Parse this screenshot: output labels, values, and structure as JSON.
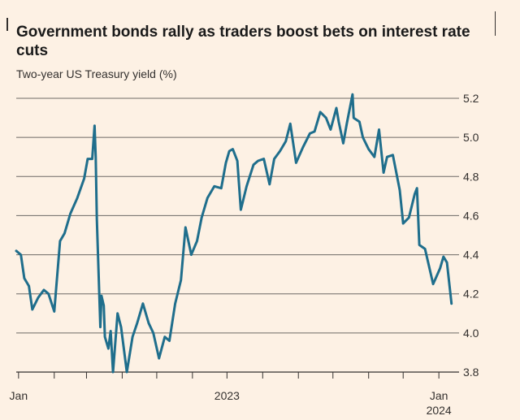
{
  "chart_data": {
    "type": "line",
    "title": "Government bonds rally as traders boost bets on interest rate cuts",
    "subtitle": "Two-year US Treasury yield (%)",
    "ylim": [
      3.8,
      5.2
    ],
    "yticks": [
      "5.2",
      "5.0",
      "4.8",
      "4.6",
      "4.4",
      "4.2",
      "4.0",
      "3.8"
    ],
    "xlim": [
      "2022-12-30",
      "2024-01-15"
    ],
    "xticks": [
      {
        "date": "2023-01-01",
        "label": "Jan",
        "sublabel": ""
      },
      {
        "date": "2023-07-01",
        "label": "2023",
        "sublabel": ""
      },
      {
        "date": "2024-01-01",
        "label": "Jan",
        "sublabel": "2024"
      }
    ],
    "grid": true,
    "series": [
      {
        "color": "#1f6e8c",
        "x": [
          "2022-12-30",
          "2023-01-03",
          "2023-01-06",
          "2023-01-10",
          "2023-01-13",
          "2023-01-18",
          "2023-01-23",
          "2023-01-27",
          "2023-02-01",
          "2023-02-06",
          "2023-02-10",
          "2023-02-15",
          "2023-02-21",
          "2023-02-27",
          "2023-03-02",
          "2023-03-06",
          "2023-03-08",
          "2023-03-09",
          "2023-03-10",
          "2023-03-13",
          "2023-03-14",
          "2023-03-16",
          "2023-03-17",
          "2023-03-20",
          "2023-03-22",
          "2023-03-24",
          "2023-03-28",
          "2023-03-31",
          "2023-04-05",
          "2023-04-10",
          "2023-04-14",
          "2023-04-19",
          "2023-04-24",
          "2023-04-28",
          "2023-05-03",
          "2023-05-08",
          "2023-05-12",
          "2023-05-17",
          "2023-05-22",
          "2023-05-26",
          "2023-05-31",
          "2023-06-05",
          "2023-06-09",
          "2023-06-14",
          "2023-06-20",
          "2023-06-26",
          "2023-06-30",
          "2023-07-03",
          "2023-07-06",
          "2023-07-10",
          "2023-07-13",
          "2023-07-18",
          "2023-07-24",
          "2023-07-28",
          "2023-08-02",
          "2023-08-07",
          "2023-08-11",
          "2023-08-16",
          "2023-08-21",
          "2023-08-25",
          "2023-08-30",
          "2023-09-05",
          "2023-09-11",
          "2023-09-15",
          "2023-09-20",
          "2023-09-25",
          "2023-09-29",
          "2023-10-04",
          "2023-10-06",
          "2023-10-10",
          "2023-10-13",
          "2023-10-18",
          "2023-10-19",
          "2023-10-24",
          "2023-10-27",
          "2023-11-01",
          "2023-11-06",
          "2023-11-10",
          "2023-11-14",
          "2023-11-17",
          "2023-11-22",
          "2023-11-28",
          "2023-12-01",
          "2023-12-06",
          "2023-12-11",
          "2023-12-13",
          "2023-12-15",
          "2023-12-20",
          "2023-12-27",
          "2024-01-02",
          "2024-01-05",
          "2024-01-08",
          "2024-01-12"
        ],
        "y": [
          4.42,
          4.4,
          4.28,
          4.24,
          4.12,
          4.18,
          4.22,
          4.2,
          4.11,
          4.47,
          4.51,
          4.61,
          4.69,
          4.79,
          4.89,
          4.89,
          5.06,
          4.9,
          4.58,
          4.03,
          4.19,
          4.14,
          3.98,
          3.92,
          4.01,
          3.8,
          4.1,
          4.03,
          3.8,
          3.98,
          4.05,
          4.15,
          4.05,
          4.0,
          3.87,
          3.98,
          3.96,
          4.15,
          4.27,
          4.54,
          4.4,
          4.47,
          4.59,
          4.69,
          4.75,
          4.74,
          4.87,
          4.93,
          4.94,
          4.88,
          4.63,
          4.75,
          4.86,
          4.88,
          4.89,
          4.76,
          4.89,
          4.93,
          4.98,
          5.07,
          4.87,
          4.95,
          5.02,
          5.03,
          5.13,
          5.1,
          5.04,
          5.15,
          5.08,
          4.97,
          5.07,
          5.22,
          5.1,
          5.08,
          5.0,
          4.94,
          4.9,
          5.04,
          4.82,
          4.9,
          4.91,
          4.73,
          4.56,
          4.59,
          4.71,
          4.74,
          4.45,
          4.43,
          4.25,
          4.33,
          4.39,
          4.36,
          4.15
        ]
      }
    ]
  }
}
